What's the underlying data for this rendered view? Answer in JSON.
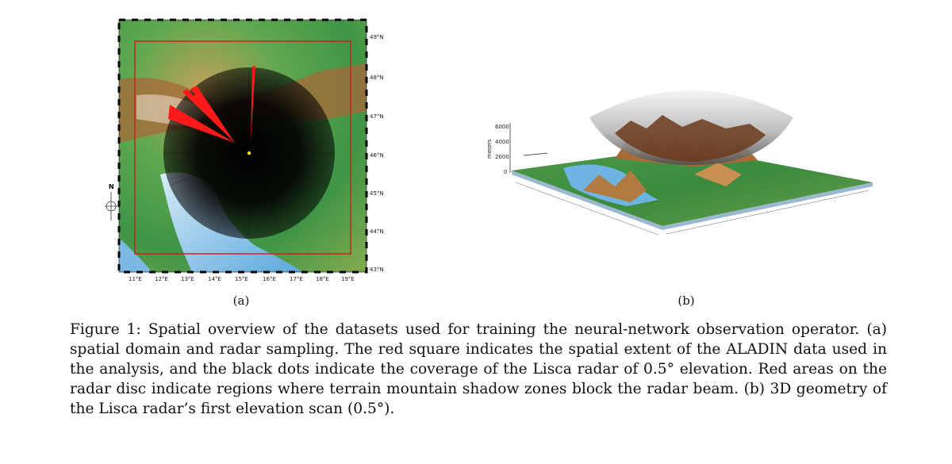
{
  "figure_a": {
    "sublabel": "(a)",
    "north_label": "N",
    "lon_ticks": [
      "11°E",
      "12°E",
      "13°E",
      "14°E",
      "15°E",
      "16°E",
      "17°E",
      "18°E",
      "19°E"
    ],
    "lat_ticks": [
      "49°N",
      "48°N",
      "47°N",
      "46°N",
      "45°N",
      "44°N",
      "43°N"
    ],
    "colors": {
      "domain_box": "#d81818",
      "radar_disc": "#000000",
      "shadow_zones": "#ff1a1a",
      "radar_site": "#ffe600"
    }
  },
  "figure_b": {
    "sublabel": "(b)",
    "z_axis_label": "meters",
    "z_ticks": [
      "6000",
      "4000",
      "2000",
      "0"
    ]
  },
  "caption": "Figure 1: Spatial overview of the datasets used for training the neural-network observation operator. (a) spatial domain and radar sampling. The red square indicates the spatial extent of the ALADIN data used in the analysis, and the black dots indicate the coverage of the Lisca radar of 0.5° elevation. Red areas on the radar disc indicate regions where terrain mountain shadow zones block the radar beam. (b) 3D geometry of the Lisca radar’s first elevation scan (0.5°)."
}
